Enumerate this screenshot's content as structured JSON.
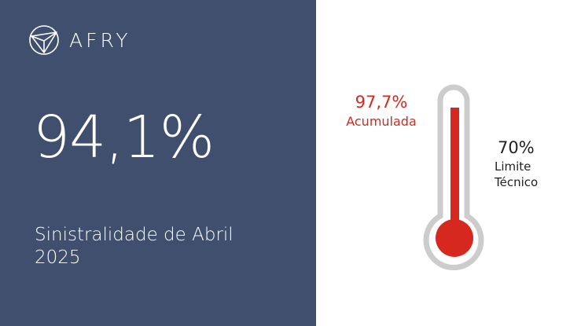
{
  "brand": {
    "name": "AFRY"
  },
  "main": {
    "value": "94,1%",
    "label": "Sinistralidade de Abril 2025"
  },
  "thermometer": {
    "accumulated_value": "97,7%",
    "accumulated_label": "Acumulada",
    "limit_value": "70%",
    "limit_label_line1": "Limite",
    "limit_label_line2": "Técnico",
    "colors": {
      "fill": "#d6281e",
      "tube": "#cccccc",
      "panel": "#3f4f6d"
    }
  }
}
